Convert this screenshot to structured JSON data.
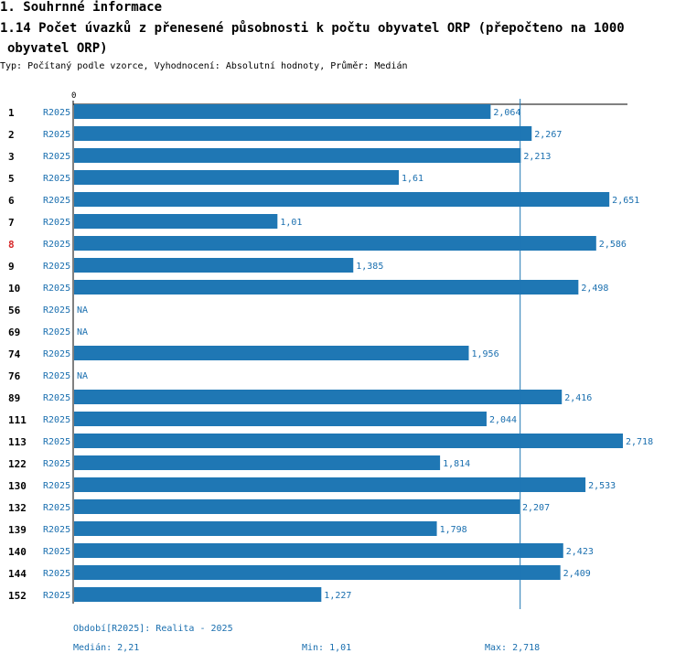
{
  "header": {
    "section_title": "1. Souhrnné informace",
    "chart_title_line1": "1.14 Počet úvazků z přenesené působnosti k počtu obyvatel ORP (přepočteno na 1000",
    "chart_title_line2": "obyvatel ORP)",
    "subtitle": "Typ: Počítaný podle vzorce, Vyhodnocení: Absolutní hodnoty, Průměr: Medián"
  },
  "colors": {
    "bar": "#1f77b4",
    "label": "#1a6faf",
    "highlight_id": "#d62728",
    "id_default": "#000000"
  },
  "chart_data": {
    "type": "bar",
    "orientation": "horizontal",
    "axis_zero_label": "0",
    "xlim": [
      0,
      2.718
    ],
    "median": 2.21,
    "highlight": "8",
    "rows": [
      {
        "id": "1",
        "series": "R2025",
        "value": 2.064,
        "label": "2,064"
      },
      {
        "id": "2",
        "series": "R2025",
        "value": 2.267,
        "label": "2,267"
      },
      {
        "id": "3",
        "series": "R2025",
        "value": 2.213,
        "label": "2,213"
      },
      {
        "id": "5",
        "series": "R2025",
        "value": 1.61,
        "label": "1,61"
      },
      {
        "id": "6",
        "series": "R2025",
        "value": 2.651,
        "label": "2,651"
      },
      {
        "id": "7",
        "series": "R2025",
        "value": 1.01,
        "label": "1,01"
      },
      {
        "id": "8",
        "series": "R2025",
        "value": 2.586,
        "label": "2,586"
      },
      {
        "id": "9",
        "series": "R2025",
        "value": 1.385,
        "label": "1,385"
      },
      {
        "id": "10",
        "series": "R2025",
        "value": 2.498,
        "label": "2,498"
      },
      {
        "id": "56",
        "series": "R2025",
        "value": null,
        "label": "NA"
      },
      {
        "id": "69",
        "series": "R2025",
        "value": null,
        "label": "NA"
      },
      {
        "id": "74",
        "series": "R2025",
        "value": 1.956,
        "label": "1,956"
      },
      {
        "id": "76",
        "series": "R2025",
        "value": null,
        "label": "NA"
      },
      {
        "id": "89",
        "series": "R2025",
        "value": 2.416,
        "label": "2,416"
      },
      {
        "id": "111",
        "series": "R2025",
        "value": 2.044,
        "label": "2,044"
      },
      {
        "id": "113",
        "series": "R2025",
        "value": 2.718,
        "label": "2,718"
      },
      {
        "id": "122",
        "series": "R2025",
        "value": 1.814,
        "label": "1,814"
      },
      {
        "id": "130",
        "series": "R2025",
        "value": 2.533,
        "label": "2,533"
      },
      {
        "id": "132",
        "series": "R2025",
        "value": 2.207,
        "label": "2,207"
      },
      {
        "id": "139",
        "series": "R2025",
        "value": 1.798,
        "label": "1,798"
      },
      {
        "id": "140",
        "series": "R2025",
        "value": 2.423,
        "label": "2,423"
      },
      {
        "id": "144",
        "series": "R2025",
        "value": 2.409,
        "label": "2,409"
      },
      {
        "id": "152",
        "series": "R2025",
        "value": 1.227,
        "label": "1,227"
      }
    ]
  },
  "footer": {
    "period": "Období[R2025]: Realita - 2025",
    "median": "Medián: 2,21",
    "min": "Min: 1,01",
    "max": "Max: 2,718"
  }
}
